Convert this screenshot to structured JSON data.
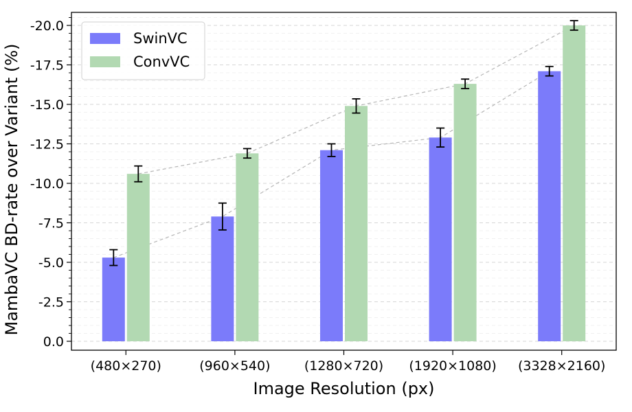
{
  "chart_data": {
    "type": "bar",
    "categories": [
      "(480×270)",
      "(960×540)",
      "(1280×720)",
      "(1920×1080)",
      "(3328×2160)"
    ],
    "series": [
      {
        "name": "SwinVC",
        "color": "#7b7bfa",
        "values": [
          -5.3,
          -7.9,
          -12.1,
          -12.9,
          -17.1
        ],
        "errors": [
          0.5,
          0.85,
          0.4,
          0.6,
          0.3
        ]
      },
      {
        "name": "ConvVC",
        "color": "#b2d9b2",
        "values": [
          -10.6,
          -11.9,
          -14.9,
          -16.3,
          -20.0
        ],
        "errors": [
          0.5,
          0.3,
          0.45,
          0.3,
          0.3
        ]
      }
    ],
    "xlabel": "Image Resolution (px)",
    "ylabel": "MambaVC BD-rate over Variant (%)",
    "ylim": [
      0,
      -20.6
    ],
    "yticks": [
      0.0,
      -2.5,
      -5.0,
      -7.5,
      -10.0,
      -12.5,
      -15.0,
      -17.5,
      -20.0
    ],
    "grid": "horizontal dashed",
    "trend_lines": "dashed gray connecting bar tops per series",
    "legend_position": "top-left"
  }
}
